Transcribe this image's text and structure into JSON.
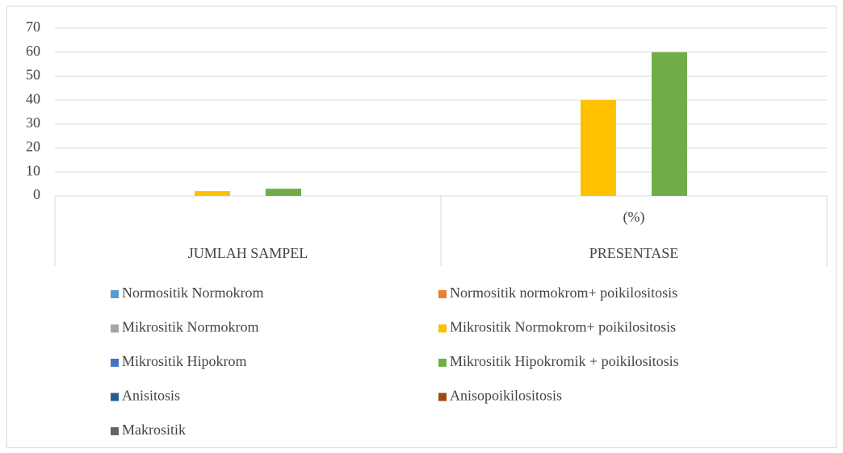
{
  "chart_data": {
    "type": "bar",
    "categories": [
      "JUMLAH SAMPEL",
      "PRESENTASE"
    ],
    "category_sublabels": [
      null,
      "(%)"
    ],
    "series": [
      {
        "name": "Normositik Normokrom",
        "color": "#5b9bd5",
        "values": [
          0,
          0
        ]
      },
      {
        "name": "Normositik normokrom+ poikilositosis",
        "color": "#ed7d31",
        "values": [
          0,
          0
        ]
      },
      {
        "name": "Mikrositik Normokrom",
        "color": "#a5a5a5",
        "values": [
          0,
          0
        ]
      },
      {
        "name": "Mikrositik Normokrom+ poikilositosis",
        "color": "#ffc000",
        "values": [
          2,
          40
        ]
      },
      {
        "name": "Mikrositik Hipokrom",
        "color": "#4472c4",
        "values": [
          0,
          0
        ]
      },
      {
        "name": "Mikrositik Hipokromik + poikilositosis",
        "color": "#70ad47",
        "values": [
          3,
          60
        ]
      },
      {
        "name": "Anisitosis",
        "color": "#255e91",
        "values": [
          0,
          0
        ]
      },
      {
        "name": "Anisopoikilositosis",
        "color": "#9e480e",
        "values": [
          0,
          0
        ]
      },
      {
        "name": "Makrositik",
        "color": "#636363",
        "values": [
          0,
          0
        ]
      }
    ],
    "ylim": [
      0,
      70
    ],
    "yticks": [
      0,
      10,
      20,
      30,
      40,
      50,
      60,
      70
    ],
    "grid": true,
    "legend": "bottom"
  }
}
